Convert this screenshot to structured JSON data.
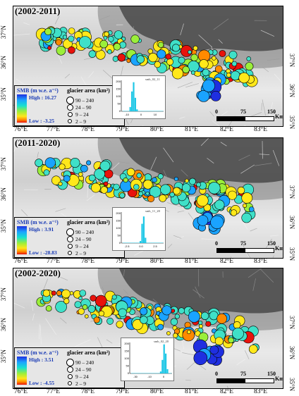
{
  "panels": [
    {
      "period": "(2002-2011)",
      "smb_high": "High : 16.27",
      "smb_low": "Low : -3.25",
      "inset_legend": "smb_02_11",
      "inset_xticks": [
        "-10",
        "0",
        "10"
      ],
      "inset_yticks": [
        "200",
        "150",
        "100",
        "50",
        "0"
      ]
    },
    {
      "period": "(2011-2020)",
      "smb_high": "High : 3.91",
      "smb_low": "Low : -28.83",
      "inset_legend": "smb_11_20",
      "inset_xticks": [
        "-2.5",
        "0.0",
        "2.5"
      ],
      "inset_yticks": [
        "200",
        "150",
        "100",
        "50",
        "0"
      ]
    },
    {
      "period": "(2002-2020)",
      "smb_high": "High : 3.51",
      "smb_low": "Low : -4.55",
      "inset_legend": "smb_02_20",
      "inset_xticks": [
        "-30",
        "-10",
        "0"
      ],
      "inset_yticks": [
        "200",
        "150",
        "100",
        "50",
        "0"
      ]
    }
  ],
  "legend": {
    "smb_title": "SMB (m w.e. a⁻¹)",
    "area_title": "glacier area (km²)",
    "area_classes": [
      "90 – 240",
      "24 – 90",
      "9 – 24",
      "2 – 9"
    ]
  },
  "axes": {
    "lat_labels": [
      "37°N",
      "36°N",
      "35°N"
    ],
    "lon_labels": [
      "76°E",
      "77°E",
      "78°E",
      "79°E",
      "80°E",
      "81°E",
      "82°E",
      "83°E"
    ]
  },
  "scalebar": {
    "ticks": [
      "0",
      "75",
      "150"
    ],
    "unit": "Km"
  },
  "colors": {
    "ramp": [
      "#1f2fe0",
      "#1aa3ff",
      "#17e0d0",
      "#9bef3a",
      "#ffe61a",
      "#ff8a00",
      "#e8120c"
    ],
    "cyan_glacier": "#3fe0c8",
    "yellow_glacier": "#ffe81a",
    "histogram": "#1ec7e6"
  }
}
